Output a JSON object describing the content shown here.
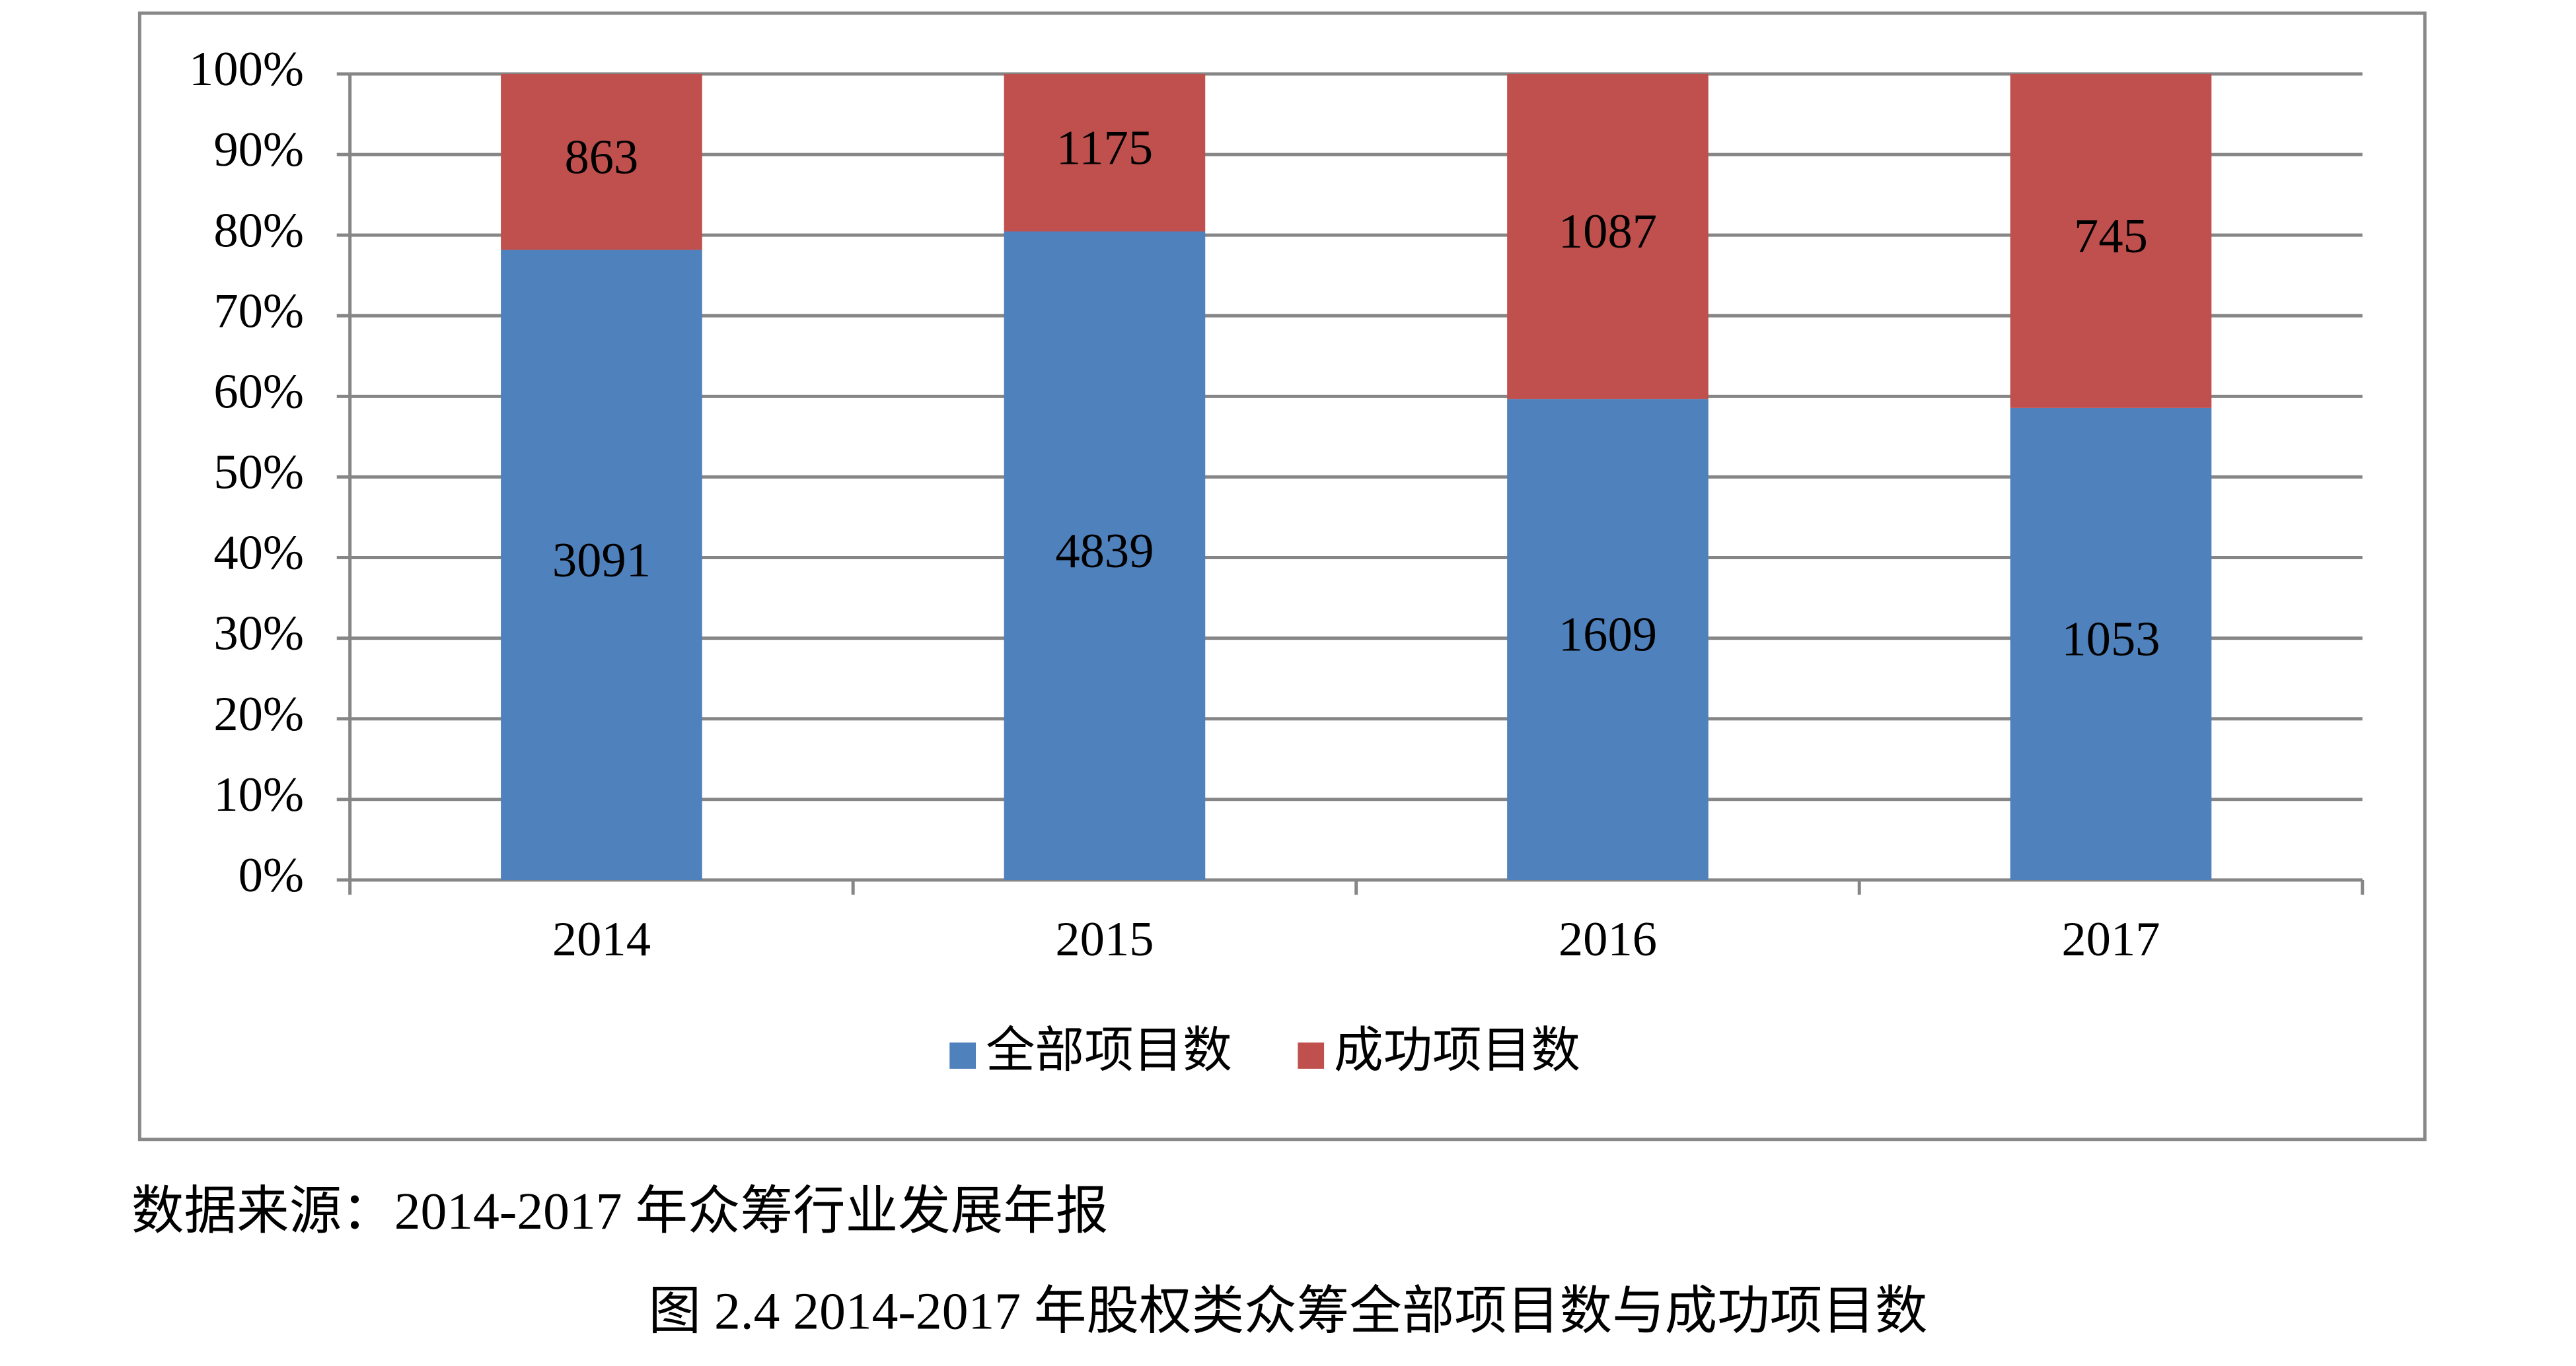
{
  "chart_data": {
    "type": "bar",
    "stacked": "percent",
    "categories": [
      "2014",
      "2015",
      "2016",
      "2017"
    ],
    "series": [
      {
        "name": "全部项目数",
        "color": "#4f81bd",
        "values": [
          3091,
          4839,
          1609,
          1053
        ]
      },
      {
        "name": "成功项目数",
        "color": "#c0504d",
        "values": [
          863,
          1175,
          1087,
          745
        ]
      }
    ],
    "ylim": [
      0,
      100
    ],
    "yticks": [
      {
        "value": 0,
        "label": "0%"
      },
      {
        "value": 10,
        "label": "10%"
      },
      {
        "value": 20,
        "label": "20%"
      },
      {
        "value": 30,
        "label": "30%"
      },
      {
        "value": 40,
        "label": "40%"
      },
      {
        "value": 50,
        "label": "50%"
      },
      {
        "value": 60,
        "label": "60%"
      },
      {
        "value": 70,
        "label": "70%"
      },
      {
        "value": 80,
        "label": "80%"
      },
      {
        "value": 90,
        "label": "90%"
      },
      {
        "value": 100,
        "label": "100%"
      }
    ],
    "grid": true,
    "legend": "bottom",
    "source": "数据来源：2014-2017 年众筹行业发展年报",
    "caption": "图  2.4 2014-2017 年股权类众筹全部项目数与成功项目数"
  }
}
